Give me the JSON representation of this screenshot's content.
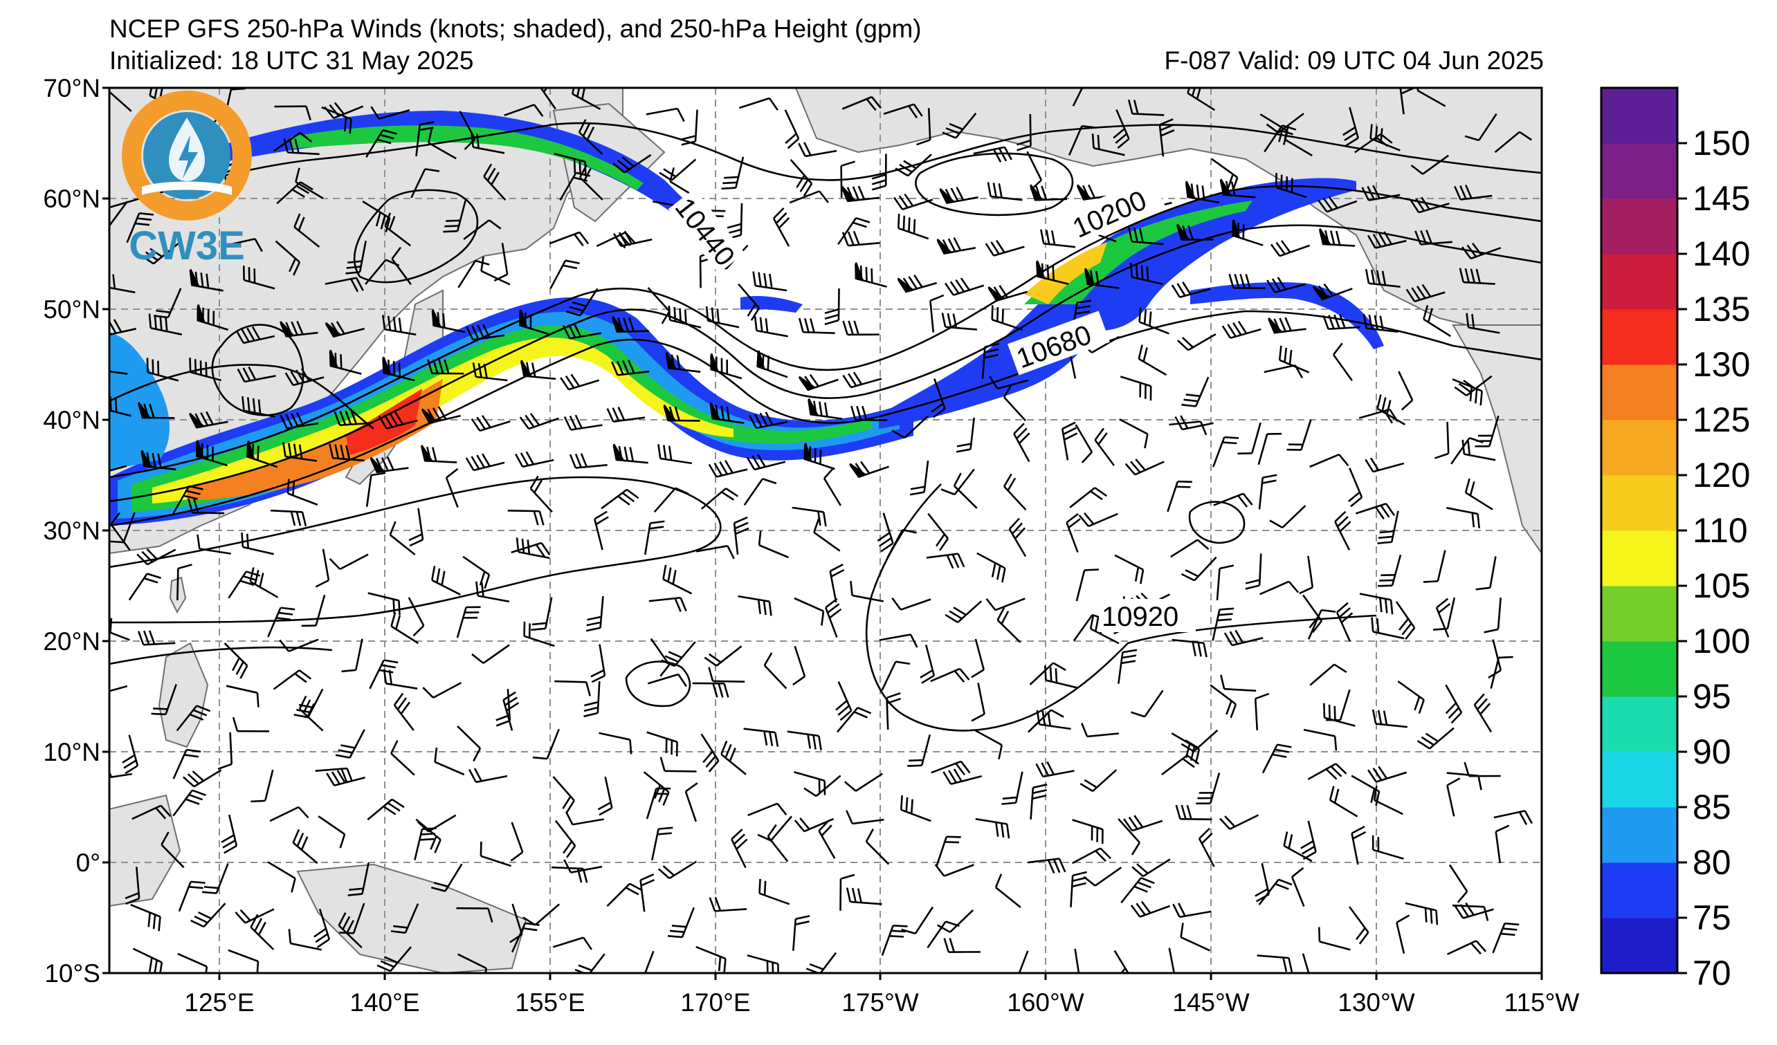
{
  "header": {
    "title": "NCEP GFS 250-hPa Winds (knots; shaded), and 250-hPa Height (gpm)",
    "initialized": "Initialized: 18 UTC 31 May 2025",
    "valid": "F-087  Valid: 09 UTC 04 Jun 2025"
  },
  "logo": {
    "text": "CW3E",
    "colors": {
      "ring": "#f39c2b",
      "water": "#2f8fbf"
    }
  },
  "map": {
    "projection": "equirectangular",
    "extent": {
      "lon_west": 115,
      "lon_east": 245,
      "lat_south": -10,
      "lat_north": 70
    },
    "lat_labels": [
      "70°N",
      "60°N",
      "50°N",
      "40°N",
      "30°N",
      "20°N",
      "10°N",
      "0°",
      "10°S"
    ],
    "lon_labels": [
      "125°E",
      "140°E",
      "155°E",
      "170°E",
      "175°W",
      "160°W",
      "145°W",
      "130°W",
      "115°W"
    ],
    "contour_labels": [
      "10440",
      "10200",
      "10680",
      "10920"
    ],
    "land_color": "#e2e2e2",
    "coast_color": "#6e6e6e",
    "grid_style": "dashed gray"
  },
  "colorbar": {
    "levels": [
      70,
      75,
      80,
      85,
      90,
      95,
      100,
      105,
      110,
      120,
      125,
      130,
      135,
      140,
      145,
      150
    ],
    "tick_labels": [
      "70",
      "75",
      "80",
      "85",
      "90",
      "95",
      "100",
      "105",
      "110",
      "120",
      "125",
      "130",
      "135",
      "140",
      "145",
      "150"
    ],
    "colors": [
      "#1d1dc9",
      "#1f3cf5",
      "#1e9bf0",
      "#1ad7e8",
      "#1bdcb0",
      "#1cc840",
      "#74cf2a",
      "#f5f51c",
      "#f7cc1d",
      "#f7a821",
      "#f5801f",
      "#f52d1d",
      "#cc1d3c",
      "#a41e62",
      "#7c1f86",
      "#5d1f96"
    ]
  }
}
